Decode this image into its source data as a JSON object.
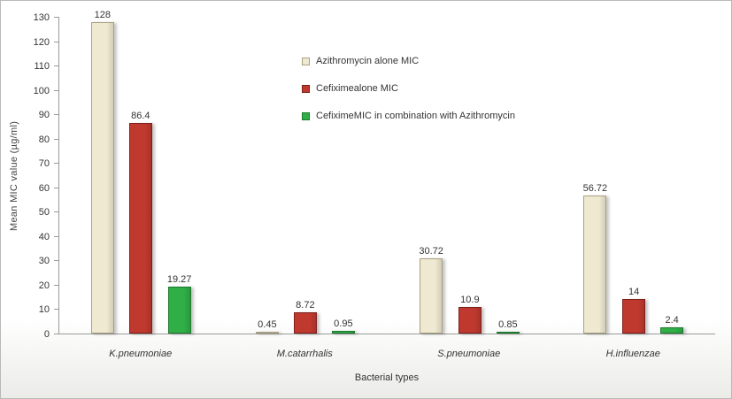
{
  "chart_data": {
    "type": "bar",
    "title": "",
    "categories": [
      "K.pneumoniae",
      "M.catarrhalis",
      "S.pneumoniae",
      "H.influenzae"
    ],
    "series": [
      {
        "name": "Azithromycin alone MIC",
        "color": "#efe9d1",
        "border_color": "#a9a183",
        "values": [
          128,
          0.45,
          30.72,
          56.72
        ]
      },
      {
        "name": "Cefiximealone MIC",
        "color": "#c0392f",
        "border_color": "#7e1f1a",
        "values": [
          86.4,
          8.72,
          10.9,
          14
        ]
      },
      {
        "name": "CefiximeMIC in combination with Azithromycin",
        "color": "#2faf46",
        "border_color": "#1d7a2f",
        "values": [
          19.27,
          0.95,
          0.85,
          2.4
        ]
      }
    ],
    "xlabel": "Bacterial types",
    "ylabel": "Mean MIC value  (µg/ml)",
    "ylim": [
      0,
      130
    ],
    "ytick_step": 10,
    "grid": false,
    "legend_position": "top-center"
  }
}
